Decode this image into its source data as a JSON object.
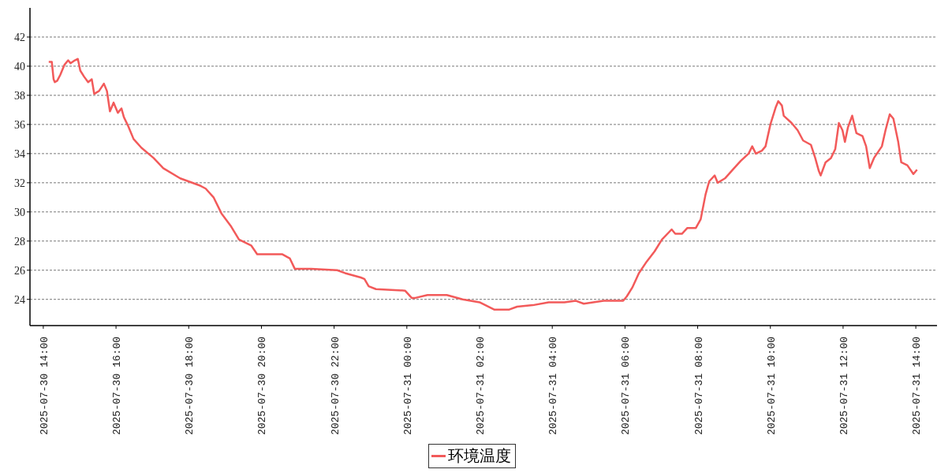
{
  "chart_data": {
    "type": "line",
    "ylim": [
      22.2,
      44
    ],
    "yticks": [
      24,
      26,
      28,
      30,
      32,
      34,
      36,
      38,
      40,
      42
    ],
    "xlim": [
      "2025-07-30T13:38",
      "2025-07-31T14:35"
    ],
    "xticks": [
      {
        "value": "2025-07-30T14:00",
        "label": "2025-07-30 14:00"
      },
      {
        "value": "2025-07-30T16:00",
        "label": "2025-07-30 16:00"
      },
      {
        "value": "2025-07-30T18:00",
        "label": "2025-07-30 18:00"
      },
      {
        "value": "2025-07-30T20:00",
        "label": "2025-07-30 20:00"
      },
      {
        "value": "2025-07-30T22:00",
        "label": "2025-07-30 22:00"
      },
      {
        "value": "2025-07-31T00:00",
        "label": "2025-07-31 00:00"
      },
      {
        "value": "2025-07-31T02:00",
        "label": "2025-07-31 02:00"
      },
      {
        "value": "2025-07-31T04:00",
        "label": "2025-07-31 04:00"
      },
      {
        "value": "2025-07-31T06:00",
        "label": "2025-07-31 06:00"
      },
      {
        "value": "2025-07-31T08:00",
        "label": "2025-07-31 08:00"
      },
      {
        "value": "2025-07-31T10:00",
        "label": "2025-07-31 10:00"
      },
      {
        "value": "2025-07-31T12:00",
        "label": "2025-07-31 12:00"
      },
      {
        "value": "2025-07-31T14:00",
        "label": "2025-07-31 14:00"
      }
    ],
    "x": [
      "2025-07-30T14:09",
      "2025-07-30T14:14",
      "2025-07-30T14:17",
      "2025-07-30T14:19",
      "2025-07-30T14:23",
      "2025-07-30T14:28",
      "2025-07-30T14:35",
      "2025-07-30T14:41",
      "2025-07-30T14:45",
      "2025-07-30T14:52",
      "2025-07-30T14:57",
      "2025-07-30T15:01",
      "2025-07-30T15:07",
      "2025-07-30T15:14",
      "2025-07-30T15:20",
      "2025-07-30T15:24",
      "2025-07-30T15:32",
      "2025-07-30T15:40",
      "2025-07-30T15:45",
      "2025-07-30T15:50",
      "2025-07-30T15:56",
      "2025-07-30T16:03",
      "2025-07-30T16:09",
      "2025-07-30T16:13",
      "2025-07-30T16:20",
      "2025-07-30T16:29",
      "2025-07-30T16:42",
      "2025-07-30T17:02",
      "2025-07-30T17:18",
      "2025-07-30T17:46",
      "2025-07-30T18:19",
      "2025-07-30T18:28",
      "2025-07-30T18:41",
      "2025-07-30T18:54",
      "2025-07-30T19:10",
      "2025-07-30T19:23",
      "2025-07-30T19:43",
      "2025-07-30T19:53",
      "2025-07-30T20:15",
      "2025-07-30T20:34",
      "2025-07-30T20:47",
      "2025-07-30T20:55",
      "2025-07-30T21:22",
      "2025-07-30T22:05",
      "2025-07-30T22:18",
      "2025-07-30T22:44",
      "2025-07-30T22:50",
      "2025-07-30T22:57",
      "2025-07-30T23:09",
      "2025-07-30T23:57",
      "2025-07-31T00:08",
      "2025-07-31T00:14",
      "2025-07-31T00:34",
      "2025-07-31T01:06",
      "2025-07-31T01:32",
      "2025-07-31T02:00",
      "2025-07-31T02:24",
      "2025-07-31T02:49",
      "2025-07-31T03:02",
      "2025-07-31T03:28",
      "2025-07-31T03:54",
      "2025-07-31T04:20",
      "2025-07-31T04:39",
      "2025-07-31T04:52",
      "2025-07-31T05:25",
      "2025-07-31T05:44",
      "2025-07-31T05:57",
      "2025-07-31T06:03",
      "2025-07-31T06:12",
      "2025-07-31T06:23",
      "2025-07-31T06:36",
      "2025-07-31T06:49",
      "2025-07-31T07:01",
      "2025-07-31T07:17",
      "2025-07-31T07:23",
      "2025-07-31T07:34",
      "2025-07-31T07:43",
      "2025-07-31T07:57",
      "2025-07-31T08:05",
      "2025-07-31T08:13",
      "2025-07-31T08:19",
      "2025-07-31T08:28",
      "2025-07-31T08:33",
      "2025-07-31T08:45",
      "2025-07-31T08:58",
      "2025-07-31T09:11",
      "2025-07-31T09:24",
      "2025-07-31T09:30",
      "2025-07-31T09:36",
      "2025-07-31T09:46",
      "2025-07-31T09:52",
      "2025-07-31T10:00",
      "2025-07-31T10:09",
      "2025-07-31T10:13",
      "2025-07-31T10:19",
      "2025-07-31T10:22",
      "2025-07-31T10:35",
      "2025-07-31T10:45",
      "2025-07-31T10:54",
      "2025-07-31T11:07",
      "2025-07-31T11:14",
      "2025-07-31T11:20",
      "2025-07-31T11:23",
      "2025-07-31T11:31",
      "2025-07-31T11:40",
      "2025-07-31T11:47",
      "2025-07-31T11:53",
      "2025-07-31T11:59",
      "2025-07-31T12:03",
      "2025-07-31T12:08",
      "2025-07-31T12:15",
      "2025-07-31T12:22",
      "2025-07-31T12:32",
      "2025-07-31T12:38",
      "2025-07-31T12:44",
      "2025-07-31T12:51",
      "2025-07-31T13:04",
      "2025-07-31T13:10",
      "2025-07-31T13:17",
      "2025-07-31T13:23",
      "2025-07-31T13:31",
      "2025-07-31T13:36",
      "2025-07-31T13:46",
      "2025-07-31T13:56",
      "2025-07-31T14:02"
    ],
    "series": [
      {
        "name": "环境温度",
        "color": "#f25a5a",
        "values": [
          40.3,
          40.3,
          39.1,
          38.9,
          39.0,
          39.4,
          40.1,
          40.4,
          40.2,
          40.4,
          40.5,
          39.7,
          39.3,
          38.9,
          39.1,
          38.1,
          38.3,
          38.8,
          38.3,
          36.9,
          37.5,
          36.8,
          37.1,
          36.5,
          35.9,
          35.0,
          34.4,
          33.7,
          33.0,
          32.3,
          31.8,
          31.6,
          31.0,
          29.9,
          29.0,
          28.1,
          27.7,
          27.1,
          27.1,
          27.1,
          26.8,
          26.1,
          26.1,
          26.0,
          25.8,
          25.5,
          25.4,
          24.9,
          24.7,
          24.6,
          24.1,
          24.1,
          24.3,
          24.3,
          24.0,
          23.8,
          23.3,
          23.3,
          23.5,
          23.6,
          23.8,
          23.8,
          23.9,
          23.7,
          23.9,
          23.9,
          23.9,
          24.2,
          24.8,
          25.8,
          26.6,
          27.3,
          28.1,
          28.8,
          28.5,
          28.5,
          28.9,
          28.9,
          29.5,
          31.2,
          32.1,
          32.5,
          32.0,
          32.3,
          32.9,
          33.5,
          34.0,
          34.5,
          34.0,
          34.2,
          34.5,
          36.0,
          37.2,
          37.6,
          37.3,
          36.6,
          36.1,
          35.6,
          34.9,
          34.6,
          33.7,
          32.8,
          32.5,
          33.4,
          33.7,
          34.3,
          36.1,
          35.6,
          34.8,
          35.8,
          36.6,
          35.4,
          35.2,
          34.5,
          33.0,
          33.7,
          34.5,
          35.6,
          36.7,
          36.4,
          34.8,
          33.4,
          33.2,
          32.6,
          32.9
        ]
      }
    ],
    "grid": "y",
    "legend": "bottom",
    "marker": "none",
    "line_style": "solid"
  }
}
